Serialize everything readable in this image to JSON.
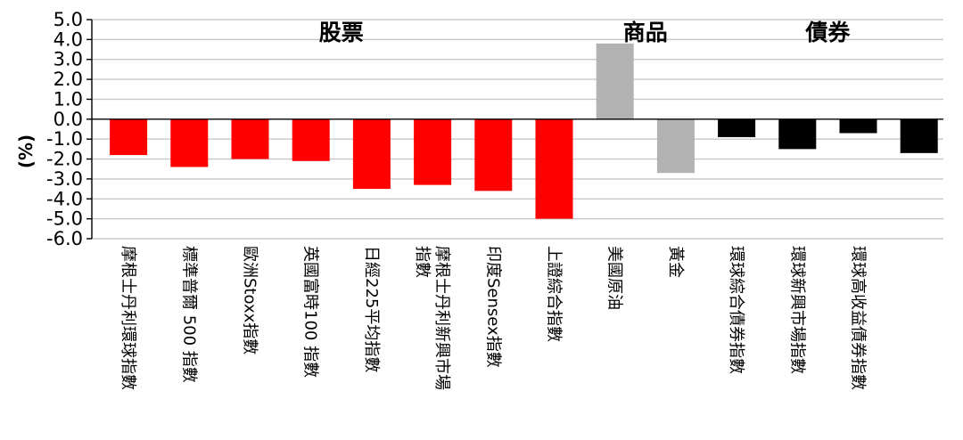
{
  "chart_data": {
    "type": "bar",
    "ylabel": "(%)",
    "ylim": [
      -6.0,
      5.0
    ],
    "ytick_step": 1.0,
    "grid": true,
    "groups": [
      {
        "label": "股票",
        "start": 0,
        "end": 7
      },
      {
        "label": "商品",
        "start": 8,
        "end": 9
      },
      {
        "label": "債券",
        "start": 10,
        "end": 13
      }
    ],
    "categories": [
      [
        "摩根士丹利環球指數"
      ],
      [
        "標準普爾 500 指數"
      ],
      [
        "歐洲Stoxx指數"
      ],
      [
        "英國富時100 指數"
      ],
      [
        "日經225平均指數"
      ],
      [
        "摩根士丹利新興市場",
        "指數"
      ],
      [
        "印度Sensex指數"
      ],
      [
        "上證綜合指數"
      ],
      [
        "美國原油"
      ],
      [
        "黃金"
      ],
      [
        "環球綜合債券指數"
      ],
      [
        "環球新興市場指數"
      ],
      [
        "環球高收益債券指數"
      ],
      [
        ""
      ]
    ],
    "values": [
      -1.8,
      -2.4,
      -2.0,
      -2.1,
      -3.5,
      -3.3,
      -3.6,
      -5.0,
      3.8,
      -2.7,
      -0.9,
      -1.5,
      -0.7,
      -1.7
    ],
    "colors": [
      "#ff0000",
      "#ff0000",
      "#ff0000",
      "#ff0000",
      "#ff0000",
      "#ff0000",
      "#ff0000",
      "#ff0000",
      "#b2b2b2",
      "#b2b2b2",
      "#000000",
      "#000000",
      "#000000",
      "#000000"
    ]
  }
}
